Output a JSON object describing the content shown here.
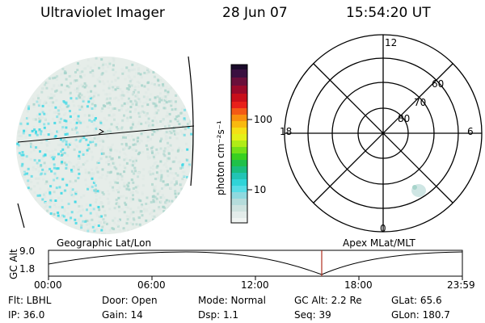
{
  "header": {
    "title": "Ultraviolet Imager",
    "date": "28 Jun 07",
    "time": "15:54:20 UT"
  },
  "colorbar": {
    "unit_label": "photon cm⁻²s⁻¹",
    "ticks": [
      "100",
      "10"
    ]
  },
  "polar": {
    "mlt_top": "12",
    "mlt_bottom": "0",
    "mlt_left": "18",
    "mlt_right": "6",
    "lat_labels": [
      "60",
      "70",
      "80"
    ]
  },
  "timeline": {
    "left_caption": "Geographic Lat/Lon",
    "right_caption": "Apex MLat/MLT",
    "axis_label": "GC Alt",
    "y_ticks": [
      "9.0",
      "1.8"
    ],
    "x_ticks": [
      "00:00",
      "06:00",
      "12:00",
      "18:00",
      "23:59"
    ]
  },
  "info": {
    "row1": [
      {
        "key": "filter",
        "text": "Flt: LBHL"
      },
      {
        "key": "door",
        "text": "Door: Open"
      },
      {
        "key": "mode",
        "text": "Mode: Normal"
      },
      {
        "key": "gc_alt",
        "text": "GC Alt: 2.2 Re"
      },
      {
        "key": "glat",
        "text": "GLat:  65.6"
      }
    ],
    "row2": [
      {
        "key": "ip",
        "text": "IP: 36.0"
      },
      {
        "key": "gain",
        "text": "Gain: 14"
      },
      {
        "key": "dsp",
        "text": "Dsp:    1.1"
      },
      {
        "key": "seq",
        "text": "Seq: 39"
      },
      {
        "key": "glon",
        "text": "GLon: 180.7"
      }
    ]
  },
  "colors": {
    "image_base": "#dde8e4",
    "image_speck": "#a7d4cb",
    "image_cyan": "#39d8e6",
    "marker": "#b03020"
  }
}
